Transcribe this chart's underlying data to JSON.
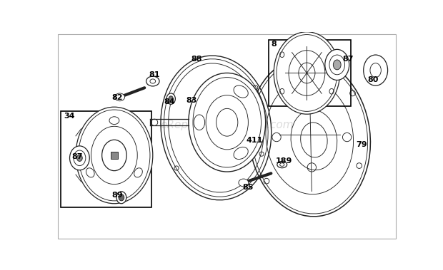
{
  "background_color": "#ffffff",
  "line_color": "#222222",
  "text_color": "#000000",
  "watermark_text": "eReplacementParts.com",
  "watermark_color": "#bbbbbb",
  "watermark_alpha": 0.5,
  "fig_width": 6.2,
  "fig_height": 3.79,
  "dpi": 100
}
